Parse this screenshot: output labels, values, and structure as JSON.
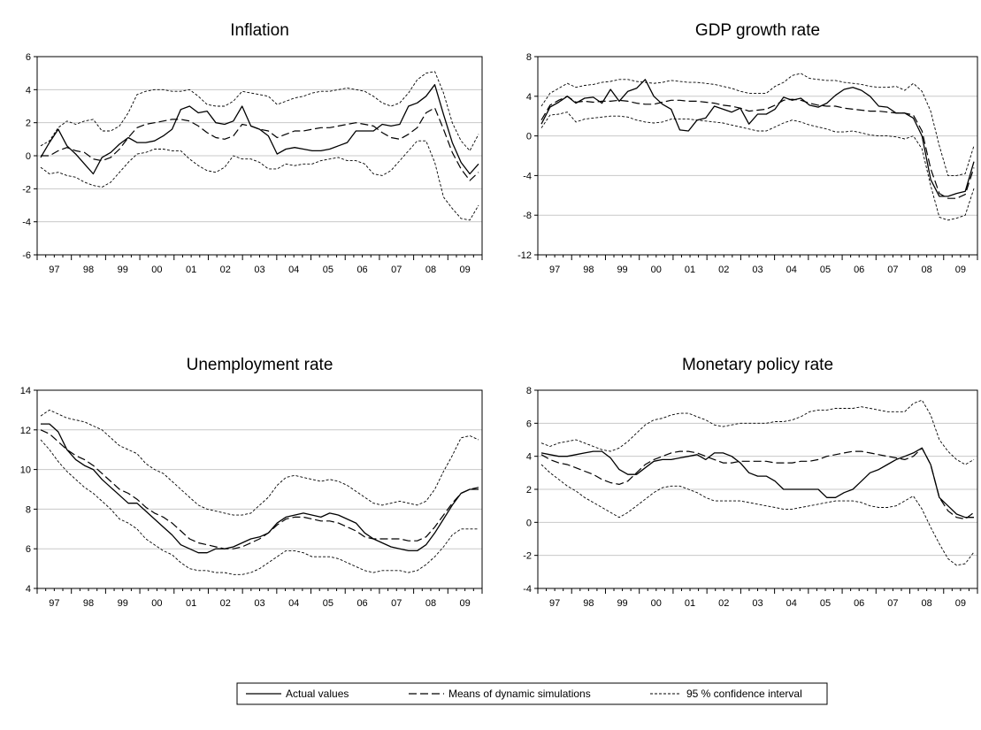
{
  "chart_data": [
    {
      "type": "line",
      "title": "Inflation",
      "x_labels": [
        "97",
        "98",
        "99",
        "00",
        "01",
        "02",
        "03",
        "04",
        "05",
        "06",
        "07",
        "08",
        "09"
      ],
      "ylim": [
        -6,
        6
      ],
      "y_ticks": [
        -6,
        -4,
        -2,
        0,
        2,
        4,
        6
      ],
      "grid": true,
      "series": [
        {
          "name": "Actual values",
          "style": "solid",
          "values": [
            -0.1,
            0.8,
            1.6,
            0.6,
            0.1,
            -0.5,
            -1.1,
            -0.1,
            0.2,
            0.7,
            1.1,
            0.8,
            0.8,
            0.9,
            1.2,
            1.6,
            2.8,
            3.0,
            2.6,
            2.7,
            2.0,
            1.9,
            2.1,
            3.0,
            1.8,
            1.6,
            1.2,
            0.1,
            0.4,
            0.5,
            0.4,
            0.3,
            0.3,
            0.4,
            0.6,
            0.8,
            1.5,
            1.5,
            1.5,
            1.9,
            1.8,
            1.9,
            3.0,
            3.2,
            3.6,
            4.3,
            2.5,
            0.8,
            -0.4,
            -1.1,
            -0.5
          ]
        },
        {
          "name": "Means of dynamic simulations",
          "style": "dash",
          "values": [
            0,
            0,
            0.3,
            0.5,
            0.3,
            0.2,
            -0.2,
            -0.3,
            -0.1,
            0.4,
            1.1,
            1.7,
            1.9,
            2.0,
            2.1,
            2.2,
            2.2,
            2.1,
            1.8,
            1.4,
            1.1,
            1.0,
            1.2,
            1.9,
            1.8,
            1.6,
            1.5,
            1.1,
            1.3,
            1.5,
            1.5,
            1.6,
            1.7,
            1.7,
            1.8,
            1.9,
            2.0,
            1.9,
            1.8,
            1.4,
            1.1,
            1.0,
            1.3,
            1.7,
            2.6,
            2.9,
            1.6,
            0.2,
            -0.8,
            -1.5,
            -1.0
          ]
        },
        {
          "name": "95 % confidence interval (upper)",
          "style": "dot",
          "values": [
            0.6,
            0.9,
            1.7,
            2.1,
            1.9,
            2.1,
            2.2,
            1.5,
            1.5,
            1.8,
            2.6,
            3.7,
            3.9,
            4.0,
            4.0,
            3.9,
            3.9,
            4.0,
            3.6,
            3.1,
            3.0,
            3.0,
            3.3,
            3.9,
            3.8,
            3.7,
            3.6,
            3.1,
            3.3,
            3.5,
            3.6,
            3.8,
            3.9,
            3.9,
            4.0,
            4.1,
            4.0,
            3.9,
            3.6,
            3.2,
            3.0,
            3.2,
            3.8,
            4.6,
            5.0,
            5.1,
            3.8,
            2.0,
            0.9,
            0.3,
            1.3
          ]
        },
        {
          "name": "95 % confidence interval (lower)",
          "style": "dot",
          "values": [
            -0.7,
            -1.1,
            -1.0,
            -1.2,
            -1.3,
            -1.6,
            -1.8,
            -1.9,
            -1.6,
            -1.0,
            -0.4,
            0.1,
            0.2,
            0.4,
            0.4,
            0.3,
            0.3,
            -0.2,
            -0.6,
            -0.9,
            -1.0,
            -0.7,
            0.0,
            -0.2,
            -0.2,
            -0.4,
            -0.8,
            -0.8,
            -0.5,
            -0.6,
            -0.5,
            -0.5,
            -0.3,
            -0.2,
            -0.1,
            -0.3,
            -0.3,
            -0.5,
            -1.1,
            -1.2,
            -0.9,
            -0.3,
            0.3,
            0.9,
            0.9,
            -0.4,
            -2.5,
            -3.2,
            -3.8,
            -3.9,
            -3.0
          ]
        }
      ]
    },
    {
      "type": "line",
      "title": "GDP growth rate",
      "x_labels": [
        "97",
        "98",
        "99",
        "00",
        "01",
        "02",
        "03",
        "04",
        "05",
        "06",
        "07",
        "08",
        "09"
      ],
      "ylim": [
        -12,
        8
      ],
      "y_ticks": [
        -12,
        -8,
        -4,
        0,
        4,
        8
      ],
      "grid": true,
      "series": [
        {
          "name": "Actual values",
          "style": "solid",
          "values": [
            1.2,
            2.9,
            3.4,
            4.0,
            3.3,
            3.8,
            3.9,
            3.3,
            4.7,
            3.5,
            4.5,
            4.8,
            5.7,
            4.0,
            3.2,
            2.7,
            0.6,
            0.5,
            1.6,
            1.8,
            3.0,
            2.7,
            2.4,
            2.8,
            1.2,
            2.2,
            2.2,
            2.7,
            3.9,
            3.6,
            3.8,
            3.1,
            2.9,
            3.3,
            4.1,
            4.7,
            4.9,
            4.6,
            4.0,
            3.0,
            2.9,
            2.3,
            2.3,
            1.8,
            0.0,
            -4.4,
            -6.1,
            -6.1,
            -5.8,
            -5.6,
            -2.6
          ]
        },
        {
          "name": "Means of dynamic simulations",
          "style": "dash",
          "values": [
            1.6,
            3.1,
            3.6,
            4.0,
            3.4,
            3.5,
            3.4,
            3.5,
            3.5,
            3.6,
            3.5,
            3.3,
            3.2,
            3.2,
            3.4,
            3.6,
            3.6,
            3.5,
            3.5,
            3.4,
            3.3,
            3.1,
            3.0,
            2.8,
            2.5,
            2.6,
            2.7,
            3.1,
            3.6,
            3.7,
            3.6,
            3.3,
            3.1,
            3.0,
            3.0,
            2.8,
            2.7,
            2.6,
            2.5,
            2.5,
            2.4,
            2.3,
            2.3,
            2.1,
            0.5,
            -3.3,
            -5.8,
            -6.3,
            -6.3,
            -5.9,
            -3.2
          ]
        },
        {
          "name": "95 % confidence interval (upper)",
          "style": "dot",
          "values": [
            3.0,
            4.3,
            4.8,
            5.3,
            4.9,
            5.1,
            5.2,
            5.4,
            5.5,
            5.7,
            5.7,
            5.5,
            5.4,
            5.3,
            5.4,
            5.6,
            5.5,
            5.4,
            5.4,
            5.3,
            5.2,
            5.0,
            4.8,
            4.5,
            4.3,
            4.3,
            4.3,
            5.0,
            5.4,
            6.1,
            6.3,
            5.8,
            5.7,
            5.6,
            5.6,
            5.4,
            5.3,
            5.2,
            5.0,
            4.9,
            4.9,
            5.0,
            4.6,
            5.3,
            4.5,
            2.5,
            -1.0,
            -4.0,
            -4.0,
            -3.8,
            -1.0
          ]
        },
        {
          "name": "95 % confidence interval (lower)",
          "style": "dot",
          "values": [
            0.8,
            2.1,
            2.2,
            2.4,
            1.4,
            1.7,
            1.8,
            1.9,
            2.0,
            2.0,
            1.9,
            1.6,
            1.4,
            1.3,
            1.4,
            1.7,
            1.7,
            1.7,
            1.6,
            1.5,
            1.4,
            1.3,
            1.1,
            0.9,
            0.7,
            0.5,
            0.5,
            0.9,
            1.3,
            1.6,
            1.4,
            1.1,
            0.9,
            0.7,
            0.4,
            0.4,
            0.5,
            0.3,
            0.1,
            0.0,
            0.0,
            -0.1,
            -0.3,
            0.0,
            -1.3,
            -5.0,
            -8.2,
            -8.5,
            -8.3,
            -8.0,
            -5.3
          ]
        }
      ]
    },
    {
      "type": "line",
      "title": "Unemployment rate",
      "x_labels": [
        "97",
        "98",
        "99",
        "00",
        "01",
        "02",
        "03",
        "04",
        "05",
        "06",
        "07",
        "08",
        "09"
      ],
      "ylim": [
        4,
        14
      ],
      "y_ticks": [
        4,
        6,
        8,
        10,
        12,
        14
      ],
      "grid": true,
      "series": [
        {
          "name": "Actual values",
          "style": "solid",
          "values": [
            12.3,
            12.3,
            11.9,
            11.0,
            10.5,
            10.2,
            10.0,
            9.5,
            9.1,
            8.7,
            8.3,
            8.3,
            7.9,
            7.5,
            7.1,
            6.7,
            6.2,
            6.0,
            5.8,
            5.8,
            6.0,
            6.0,
            6.1,
            6.3,
            6.5,
            6.6,
            6.8,
            7.3,
            7.6,
            7.7,
            7.8,
            7.7,
            7.6,
            7.8,
            7.7,
            7.5,
            7.3,
            6.8,
            6.5,
            6.3,
            6.1,
            6.0,
            5.9,
            5.9,
            6.2,
            6.8,
            7.5,
            8.2,
            8.8,
            9.0,
            9.0
          ]
        },
        {
          "name": "Means of dynamic simulations",
          "style": "dash",
          "values": [
            12.0,
            11.8,
            11.4,
            11.0,
            10.7,
            10.5,
            10.2,
            9.8,
            9.4,
            9.0,
            8.8,
            8.5,
            8.1,
            7.8,
            7.6,
            7.3,
            6.9,
            6.5,
            6.3,
            6.2,
            6.1,
            6.0,
            6.0,
            6.1,
            6.3,
            6.5,
            6.8,
            7.2,
            7.5,
            7.6,
            7.6,
            7.5,
            7.4,
            7.4,
            7.3,
            7.1,
            6.9,
            6.6,
            6.5,
            6.5,
            6.5,
            6.5,
            6.4,
            6.4,
            6.6,
            7.1,
            7.7,
            8.3,
            8.8,
            9.0,
            9.1
          ]
        },
        {
          "name": "95 % confidence interval (upper)",
          "style": "dot",
          "values": [
            12.7,
            13.0,
            12.8,
            12.6,
            12.5,
            12.4,
            12.2,
            12.0,
            11.6,
            11.2,
            11.0,
            10.8,
            10.3,
            10.0,
            9.8,
            9.4,
            9.0,
            8.6,
            8.2,
            8.0,
            7.9,
            7.8,
            7.7,
            7.7,
            7.8,
            8.2,
            8.6,
            9.2,
            9.6,
            9.7,
            9.6,
            9.5,
            9.4,
            9.5,
            9.4,
            9.2,
            8.9,
            8.6,
            8.3,
            8.2,
            8.3,
            8.4,
            8.3,
            8.2,
            8.4,
            9.0,
            9.9,
            10.7,
            11.6,
            11.7,
            11.5
          ]
        },
        {
          "name": "95 % confidence interval (lower)",
          "style": "dot",
          "values": [
            11.5,
            11.0,
            10.4,
            9.9,
            9.5,
            9.1,
            8.8,
            8.4,
            8.0,
            7.5,
            7.3,
            7.0,
            6.5,
            6.2,
            5.9,
            5.7,
            5.3,
            5.0,
            4.9,
            4.9,
            4.8,
            4.8,
            4.7,
            4.7,
            4.8,
            5.0,
            5.3,
            5.6,
            5.9,
            5.9,
            5.8,
            5.6,
            5.6,
            5.6,
            5.5,
            5.3,
            5.1,
            4.9,
            4.8,
            4.9,
            4.9,
            4.9,
            4.8,
            4.9,
            5.2,
            5.6,
            6.1,
            6.7,
            7.0,
            7.0,
            7.0
          ]
        }
      ]
    },
    {
      "type": "line",
      "title": "Monetary policy rate",
      "x_labels": [
        "97",
        "98",
        "99",
        "00",
        "01",
        "02",
        "03",
        "04",
        "05",
        "06",
        "07",
        "08",
        "09"
      ],
      "ylim": [
        -4,
        8
      ],
      "y_ticks": [
        -4,
        -2,
        0,
        2,
        4,
        6,
        8
      ],
      "grid": true,
      "series": [
        {
          "name": "Actual values",
          "style": "solid",
          "values": [
            4.2,
            4.1,
            4.0,
            4.0,
            4.1,
            4.2,
            4.3,
            4.3,
            3.9,
            3.2,
            2.9,
            2.9,
            3.3,
            3.7,
            3.8,
            3.8,
            3.9,
            4.0,
            4.1,
            3.8,
            4.2,
            4.2,
            4.0,
            3.6,
            3.0,
            2.8,
            2.8,
            2.5,
            2.0,
            2.0,
            2.0,
            2.0,
            2.0,
            1.5,
            1.5,
            1.8,
            2.0,
            2.5,
            3.0,
            3.2,
            3.5,
            3.8,
            4.0,
            4.2,
            4.5,
            3.5,
            1.5,
            1.0,
            0.5,
            0.3,
            0.3
          ]
        },
        {
          "name": "Means of dynamic simulations",
          "style": "dash",
          "values": [
            4.1,
            3.8,
            3.6,
            3.5,
            3.3,
            3.1,
            2.9,
            2.6,
            2.4,
            2.3,
            2.5,
            3.0,
            3.5,
            3.8,
            4.0,
            4.2,
            4.3,
            4.3,
            4.2,
            4.0,
            3.8,
            3.6,
            3.6,
            3.7,
            3.7,
            3.7,
            3.7,
            3.6,
            3.6,
            3.6,
            3.7,
            3.7,
            3.8,
            4.0,
            4.1,
            4.2,
            4.3,
            4.3,
            4.2,
            4.1,
            4.0,
            3.9,
            3.8,
            4.0,
            4.5,
            3.5,
            1.5,
            0.7,
            0.3,
            0.2,
            0.6
          ]
        },
        {
          "name": "95 % confidence interval (upper)",
          "style": "dot",
          "values": [
            4.8,
            4.6,
            4.8,
            4.9,
            5.0,
            4.8,
            4.6,
            4.4,
            4.3,
            4.5,
            4.9,
            5.4,
            5.9,
            6.2,
            6.3,
            6.5,
            6.6,
            6.6,
            6.4,
            6.2,
            5.9,
            5.8,
            5.9,
            6.0,
            6.0,
            6.0,
            6.0,
            6.1,
            6.1,
            6.2,
            6.4,
            6.7,
            6.8,
            6.8,
            6.9,
            6.9,
            6.9,
            7.0,
            6.9,
            6.8,
            6.7,
            6.7,
            6.7,
            7.2,
            7.4,
            6.5,
            5.0,
            4.3,
            3.8,
            3.5,
            3.8
          ]
        },
        {
          "name": "95 % confidence interval (lower)",
          "style": "dot",
          "values": [
            3.5,
            3.0,
            2.6,
            2.2,
            1.9,
            1.5,
            1.2,
            0.9,
            0.6,
            0.3,
            0.6,
            1.0,
            1.4,
            1.8,
            2.1,
            2.2,
            2.2,
            2.0,
            1.8,
            1.5,
            1.3,
            1.3,
            1.3,
            1.3,
            1.2,
            1.1,
            1.0,
            0.9,
            0.8,
            0.8,
            0.9,
            1.0,
            1.1,
            1.2,
            1.3,
            1.3,
            1.3,
            1.2,
            1.0,
            0.9,
            0.9,
            1.0,
            1.3,
            1.6,
            0.8,
            -0.3,
            -1.3,
            -2.2,
            -2.6,
            -2.5,
            -1.8
          ]
        }
      ]
    }
  ],
  "legend": {
    "actual": "Actual values",
    "means": "Means of dynamic simulations",
    "ci": "95 % confidence interval"
  }
}
